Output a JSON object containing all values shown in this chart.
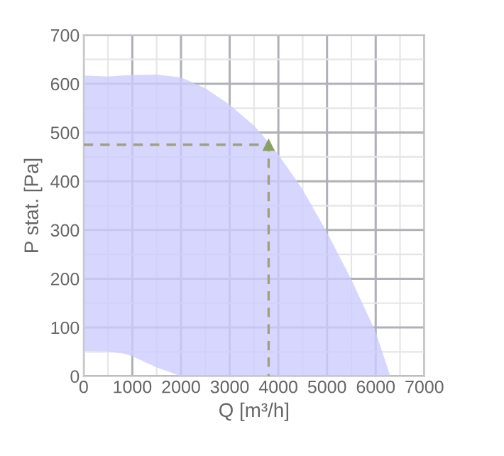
{
  "chart_data": {
    "xlabel": "Q [m³/h]",
    "ylabel": "P stat. [Pa]",
    "xlim": [
      0,
      7000
    ],
    "ylim": [
      0,
      700
    ],
    "xticks": [
      0,
      1000,
      2000,
      3000,
      4000,
      5000,
      6000,
      7000
    ],
    "yticks": [
      0,
      100,
      200,
      300,
      400,
      500,
      600,
      700
    ],
    "type": "line",
    "grid": true,
    "series": [
      {
        "color": "#ccccff",
        "x": [
          0,
          500,
          800,
          1000,
          1500,
          2000,
          2500,
          3000,
          3500,
          3800,
          4000,
          4500,
          5000,
          5500,
          6000,
          6300
        ],
        "values": [
          null,
          null,
          null,
          null,
          null,
          null,
          null,
          null,
          null,
          null,
          null,
          null,
          null,
          null,
          null,
          null
        ],
        "upper": [
          617,
          615,
          617,
          618,
          619,
          613,
          591,
          557,
          514,
          480,
          455,
          383,
          295,
          198,
          91,
          0
        ],
        "lower": [
          52,
          51,
          47,
          41,
          18,
          0,
          0,
          0,
          0,
          0,
          0,
          0,
          0,
          0,
          0,
          0
        ]
      },
      {
        "type": "line",
        "color": "#a0a080",
        "line_style": "dashed",
        "marker": "none",
        "x": [
          0,
          3800,
          3800
        ],
        "values": [
          475,
          475,
          0
        ]
      },
      {
        "type": "scatter",
        "color": "#88a060",
        "marker": "triangle",
        "x": [
          3800
        ],
        "values": [
          475
        ]
      }
    ]
  }
}
